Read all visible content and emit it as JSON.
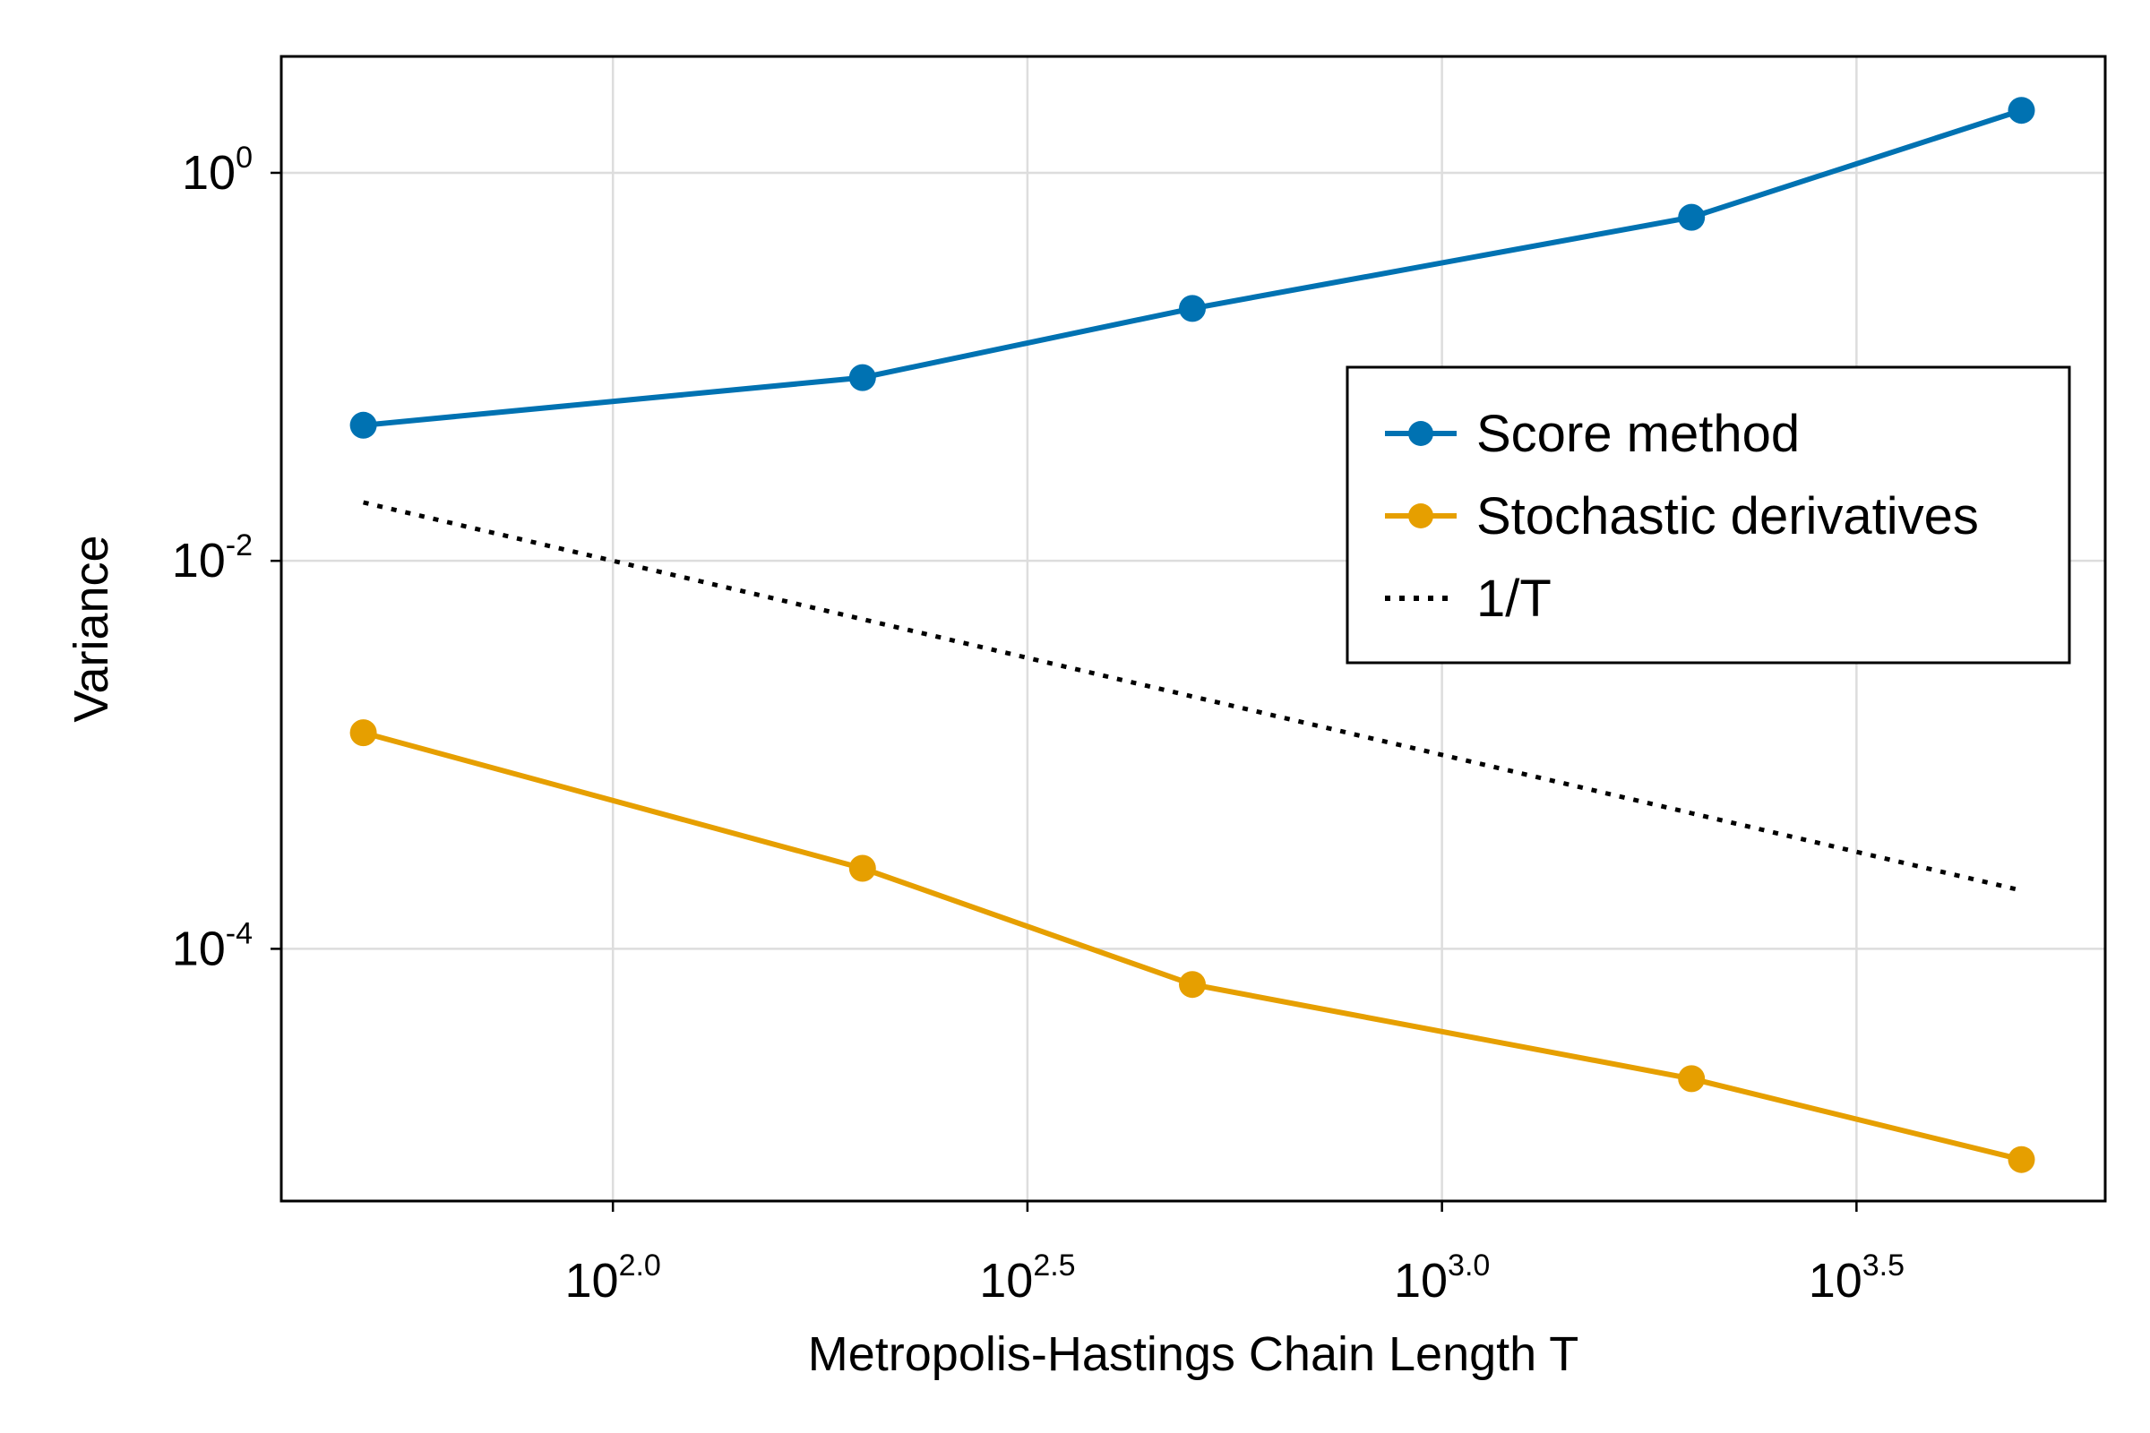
{
  "chart_data": {
    "type": "line",
    "xscale": "log10",
    "yscale": "log10",
    "xlabel": "Metropolis-Hastings Chain Length T",
    "ylabel": "Variance",
    "xlim_log10": [
      1.6,
      3.8
    ],
    "ylim_log10": [
      -5.3,
      0.6
    ],
    "grid": true,
    "x_ticks": [
      {
        "value_log10": 2.0,
        "base": "10",
        "exp": "2.0"
      },
      {
        "value_log10": 2.5,
        "base": "10",
        "exp": "2.5"
      },
      {
        "value_log10": 3.0,
        "base": "10",
        "exp": "3.0"
      },
      {
        "value_log10": 3.5,
        "base": "10",
        "exp": "3.5"
      }
    ],
    "y_ticks": [
      {
        "value_log10": 0,
        "base": "10",
        "exp": "0"
      },
      {
        "value_log10": -2,
        "base": "10",
        "exp": "-2"
      },
      {
        "value_log10": -4,
        "base": "10",
        "exp": "-4"
      }
    ],
    "x": [
      50,
      200,
      500,
      2000,
      5000
    ],
    "series": [
      {
        "name": "Score method",
        "color": "#0072B2",
        "style": "line+marker",
        "values": [
          0.05,
          0.088,
          0.2,
          0.59,
          2.1
        ]
      },
      {
        "name": "Stochastic derivatives",
        "color": "#E69F00",
        "style": "line+marker",
        "values": [
          0.0013,
          0.00026,
          6.55e-05,
          2.14e-05,
          8.2e-06
        ]
      },
      {
        "name": "1/T",
        "color": "#000000",
        "style": "dotted",
        "values": [
          0.02,
          0.005,
          0.002,
          0.0005,
          0.0002
        ]
      }
    ],
    "legend": {
      "position": "right-middle",
      "entries": [
        "Score method",
        "Stochastic derivatives",
        "1/T"
      ]
    }
  }
}
